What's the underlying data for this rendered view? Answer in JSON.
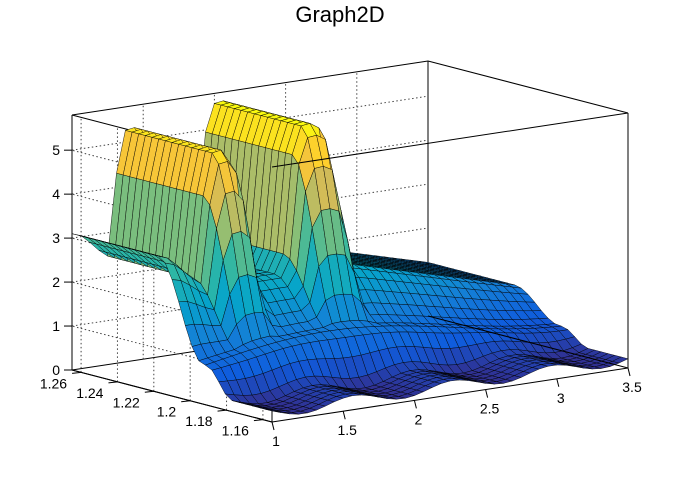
{
  "chart_data": {
    "type": "surface",
    "title": "Graph2D",
    "xlabel": "",
    "ylabel": "",
    "zlabel": "",
    "xlim": [
      1,
      3.5
    ],
    "ylim": [
      1.155,
      1.265
    ],
    "zlim": [
      0,
      5.8
    ],
    "x_ticks": [
      "1",
      "1.5",
      "2",
      "2.5",
      "3",
      "3.5"
    ],
    "y_ticks": [
      "1.16",
      "1.18",
      "1.2",
      "1.22",
      "1.24",
      "1.26"
    ],
    "z_ticks": [
      "0",
      "1",
      "2",
      "3",
      "4",
      "5"
    ],
    "grid": true,
    "colormap": [
      "#352a87",
      "#0f5cdd",
      "#1481d6",
      "#06a4ca",
      "#2eb7a4",
      "#87bf77",
      "#d1bb59",
      "#fec832",
      "#f9fb0e"
    ],
    "features": {
      "ridges": [
        {
          "x": 1.42,
          "y_from": 1.205,
          "y_to": 1.265,
          "peak_z": 5.3
        },
        {
          "x": 2.05,
          "y_from": 1.205,
          "y_to": 1.265,
          "peak_z": 5.6
        }
      ],
      "valley_z": 2.3,
      "low_band_y": 1.185,
      "base_z": 0.2
    }
  }
}
